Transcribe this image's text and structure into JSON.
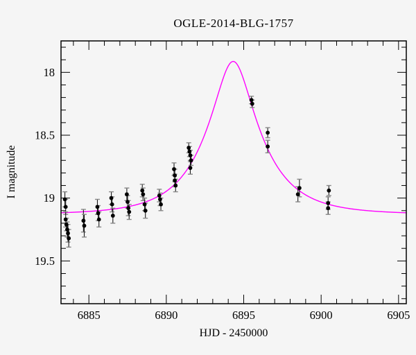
{
  "page": {
    "background_color": "#f5f5f5"
  },
  "chart_data": {
    "type": "scatter",
    "title": "OGLE-2014-BLG-1757",
    "xlabel": "HJD - 2450000",
    "ylabel": "I magnitude",
    "x_axis": {
      "min": 6883.2,
      "max": 6905.5,
      "major_ticks": [
        6885,
        6890,
        6895,
        6900,
        6905
      ],
      "major_tick_labels": [
        "6885",
        "6890",
        "6895",
        "6900",
        "6905"
      ],
      "minor_tick_step": 1
    },
    "y_axis": {
      "top_value": 17.75,
      "bottom_value": 19.84,
      "inverted_magnitude_axis": true,
      "major_ticks": [
        18,
        18.5,
        19,
        19.5
      ],
      "major_tick_labels": [
        "18",
        "18.5",
        "19",
        "19.5"
      ],
      "minor_tick_step": 0.1
    },
    "grid": false,
    "legend": null,
    "colors": {
      "frame": "#000000",
      "ticks": "#000000",
      "point": "#000000",
      "error_bar": "#1a1a1a",
      "error_cap": "#888888",
      "model_curve": "#ff00ff",
      "text": "#000000"
    },
    "points_format": [
      "hjd_minus_2450000",
      "i_magnitude",
      "error"
    ],
    "points": [
      [
        6883.45,
        19.01,
        0.06
      ],
      [
        6883.5,
        19.07,
        0.06
      ],
      [
        6883.5,
        19.17,
        0.06
      ],
      [
        6883.55,
        19.21,
        0.05
      ],
      [
        6883.6,
        19.25,
        0.06
      ],
      [
        6883.65,
        19.28,
        0.07
      ],
      [
        6883.7,
        19.32,
        0.07
      ],
      [
        6884.65,
        19.18,
        0.09
      ],
      [
        6884.7,
        19.22,
        0.09
      ],
      [
        6885.55,
        19.07,
        0.06
      ],
      [
        6885.6,
        19.12,
        0.06
      ],
      [
        6885.65,
        19.17,
        0.06
      ],
      [
        6886.45,
        19.0,
        0.05
      ],
      [
        6886.5,
        19.05,
        0.06
      ],
      [
        6886.55,
        19.14,
        0.06
      ],
      [
        6887.45,
        18.97,
        0.05
      ],
      [
        6887.5,
        19.03,
        0.05
      ],
      [
        6887.55,
        19.08,
        0.06
      ],
      [
        6887.6,
        19.11,
        0.06
      ],
      [
        6888.45,
        18.94,
        0.05
      ],
      [
        6888.5,
        18.97,
        0.05
      ],
      [
        6888.6,
        19.05,
        0.05
      ],
      [
        6888.65,
        19.1,
        0.06
      ],
      [
        6889.55,
        18.98,
        0.05
      ],
      [
        6889.6,
        19.01,
        0.05
      ],
      [
        6889.65,
        19.05,
        0.05
      ],
      [
        6890.5,
        18.77,
        0.05
      ],
      [
        6890.55,
        18.82,
        0.05
      ],
      [
        6890.55,
        18.86,
        0.05
      ],
      [
        6890.6,
        18.9,
        0.05
      ],
      [
        6891.45,
        18.6,
        0.04
      ],
      [
        6891.5,
        18.63,
        0.04
      ],
      [
        6891.55,
        18.66,
        0.04
      ],
      [
        6891.6,
        18.7,
        0.04
      ],
      [
        6891.55,
        18.76,
        0.05
      ],
      [
        6895.5,
        18.22,
        0.03
      ],
      [
        6895.55,
        18.25,
        0.03
      ],
      [
        6896.55,
        18.48,
        0.04
      ],
      [
        6896.55,
        18.59,
        0.05
      ],
      [
        6898.5,
        18.97,
        0.06
      ],
      [
        6898.6,
        18.92,
        0.07
      ],
      [
        6900.45,
        19.04,
        0.05
      ],
      [
        6900.45,
        19.08,
        0.05
      ],
      [
        6900.5,
        18.94,
        0.04
      ]
    ],
    "model_curve": {
      "model": "paczynski_microlensing",
      "t0": 6894.32,
      "tE_days": 3.4,
      "u0": 0.34,
      "baseline_mag": 19.13,
      "peak_mag": 17.9
    }
  }
}
